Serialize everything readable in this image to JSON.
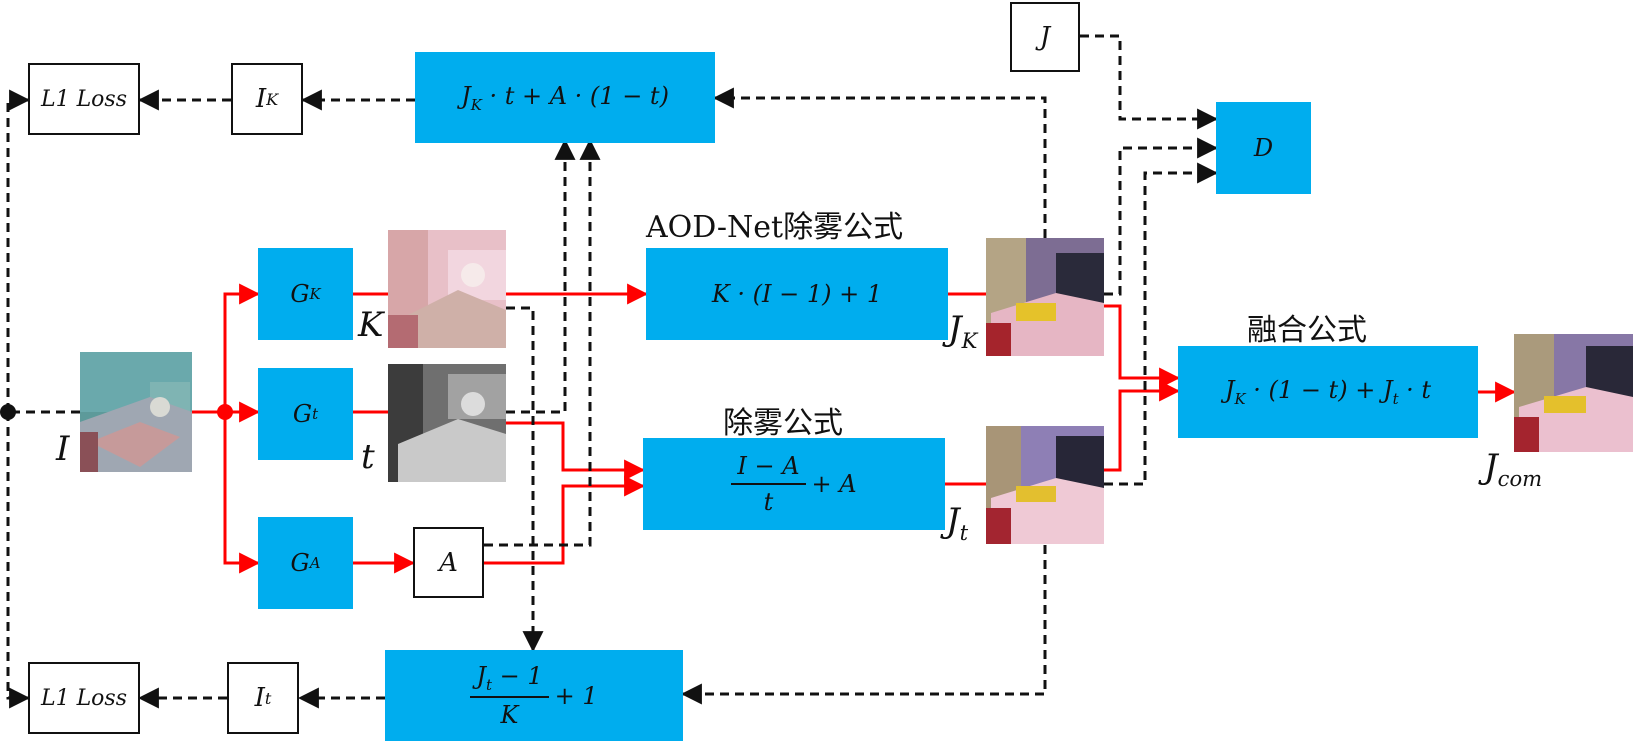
{
  "headings": {
    "aod": "AOD-Net除雾公式",
    "dehaze": "除雾公式",
    "fusion": "融合公式"
  },
  "loss_top": "L1 Loss",
  "loss_bottom": "L1 Loss",
  "gen": {
    "gk_base": "G",
    "gk_sub": "K",
    "gt_base": "G",
    "gt_sub": "t",
    "ga_base": "G",
    "ga_sub": "A"
  },
  "boxes": {
    "ik_base": "I",
    "ik_sub": "K",
    "it_base": "I",
    "it_sub": "t",
    "a": "A",
    "j": "J",
    "d": "D"
  },
  "formulas": {
    "recon_k_j": "J",
    "recon_k_jsub": "K",
    "recon_k_rest": " · t + A · (1 − t)",
    "aod": "K · (I − 1) + 1",
    "dehaze_num": "I − A",
    "dehaze_den": "t",
    "dehaze_tail": " + A",
    "fuse_a": "J",
    "fuse_asub": "K",
    "fuse_b": " · (1 − t) + ",
    "fuse_c": "J",
    "fuse_csub": "t",
    "fuse_d": " · t",
    "recon_t_num_a": "J",
    "recon_t_num_sub": "t",
    "recon_t_num_b": " − 1",
    "recon_t_den": "K",
    "recon_t_tail": " + 1"
  },
  "labels": {
    "i": "I",
    "k": "K",
    "t": "t",
    "jk_base": "J",
    "jk_sub": "K",
    "jt_base": "J",
    "jt_sub": "t",
    "jcom_base": "J",
    "jcom_sub": "com"
  },
  "colors": {
    "box": "#00adee",
    "flow": "#ff0000",
    "dashed": "#111111"
  }
}
